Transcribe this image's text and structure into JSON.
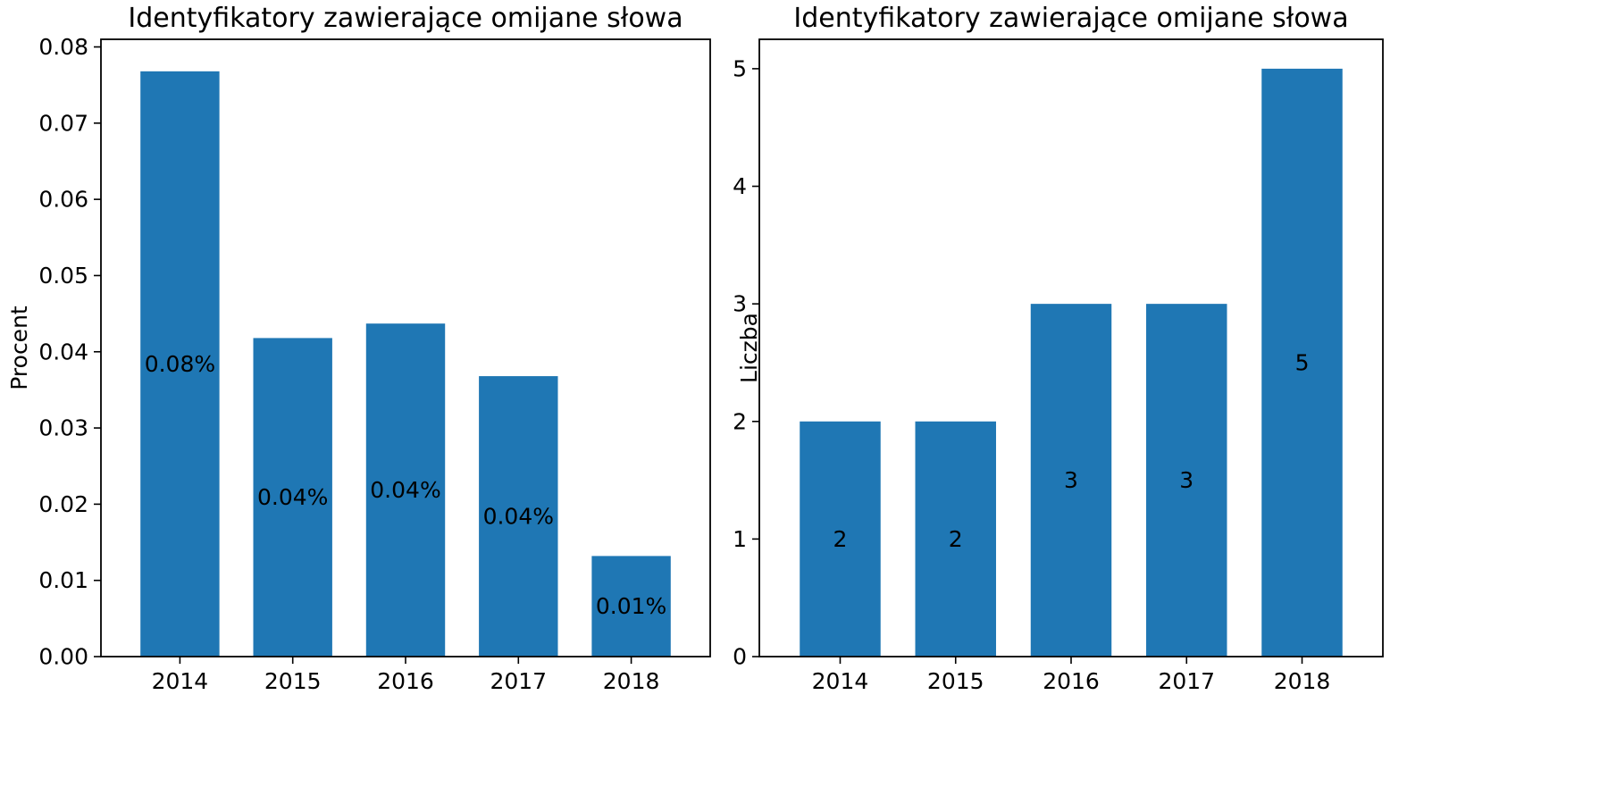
{
  "colors": {
    "bar": "#1f77b4",
    "text": "#000000",
    "axes": "#000000",
    "background": "#ffffff"
  },
  "chart_data": [
    {
      "type": "bar",
      "title": "Identyfikatory zawierające omijane słowa",
      "xlabel": "",
      "ylabel": "Procent",
      "categories": [
        "2014",
        "2015",
        "2016",
        "2017",
        "2018"
      ],
      "values": [
        0.0768,
        0.0418,
        0.0437,
        0.0368,
        0.0132
      ],
      "data_labels": [
        "0.08%",
        "0.04%",
        "0.04%",
        "0.04%",
        "0.01%"
      ],
      "ylim": [
        0,
        0.081
      ],
      "yticks": [
        0.0,
        0.01,
        0.02,
        0.03,
        0.04,
        0.05,
        0.06,
        0.07,
        0.08
      ],
      "ytick_labels": [
        "0.00",
        "0.01",
        "0.02",
        "0.03",
        "0.04",
        "0.05",
        "0.06",
        "0.07",
        "0.08"
      ],
      "grid": false,
      "legend": "none"
    },
    {
      "type": "bar",
      "title": "Identyfikatory zawierające omijane słowa",
      "xlabel": "",
      "ylabel": "Liczba",
      "categories": [
        "2014",
        "2015",
        "2016",
        "2017",
        "2018"
      ],
      "values": [
        2,
        2,
        3,
        3,
        5
      ],
      "data_labels": [
        "2",
        "2",
        "3",
        "3",
        "5"
      ],
      "ylim": [
        0,
        5.25
      ],
      "yticks": [
        0,
        1,
        2,
        3,
        4,
        5
      ],
      "ytick_labels": [
        "0",
        "1",
        "2",
        "3",
        "4",
        "5"
      ],
      "grid": false,
      "legend": "none"
    }
  ]
}
